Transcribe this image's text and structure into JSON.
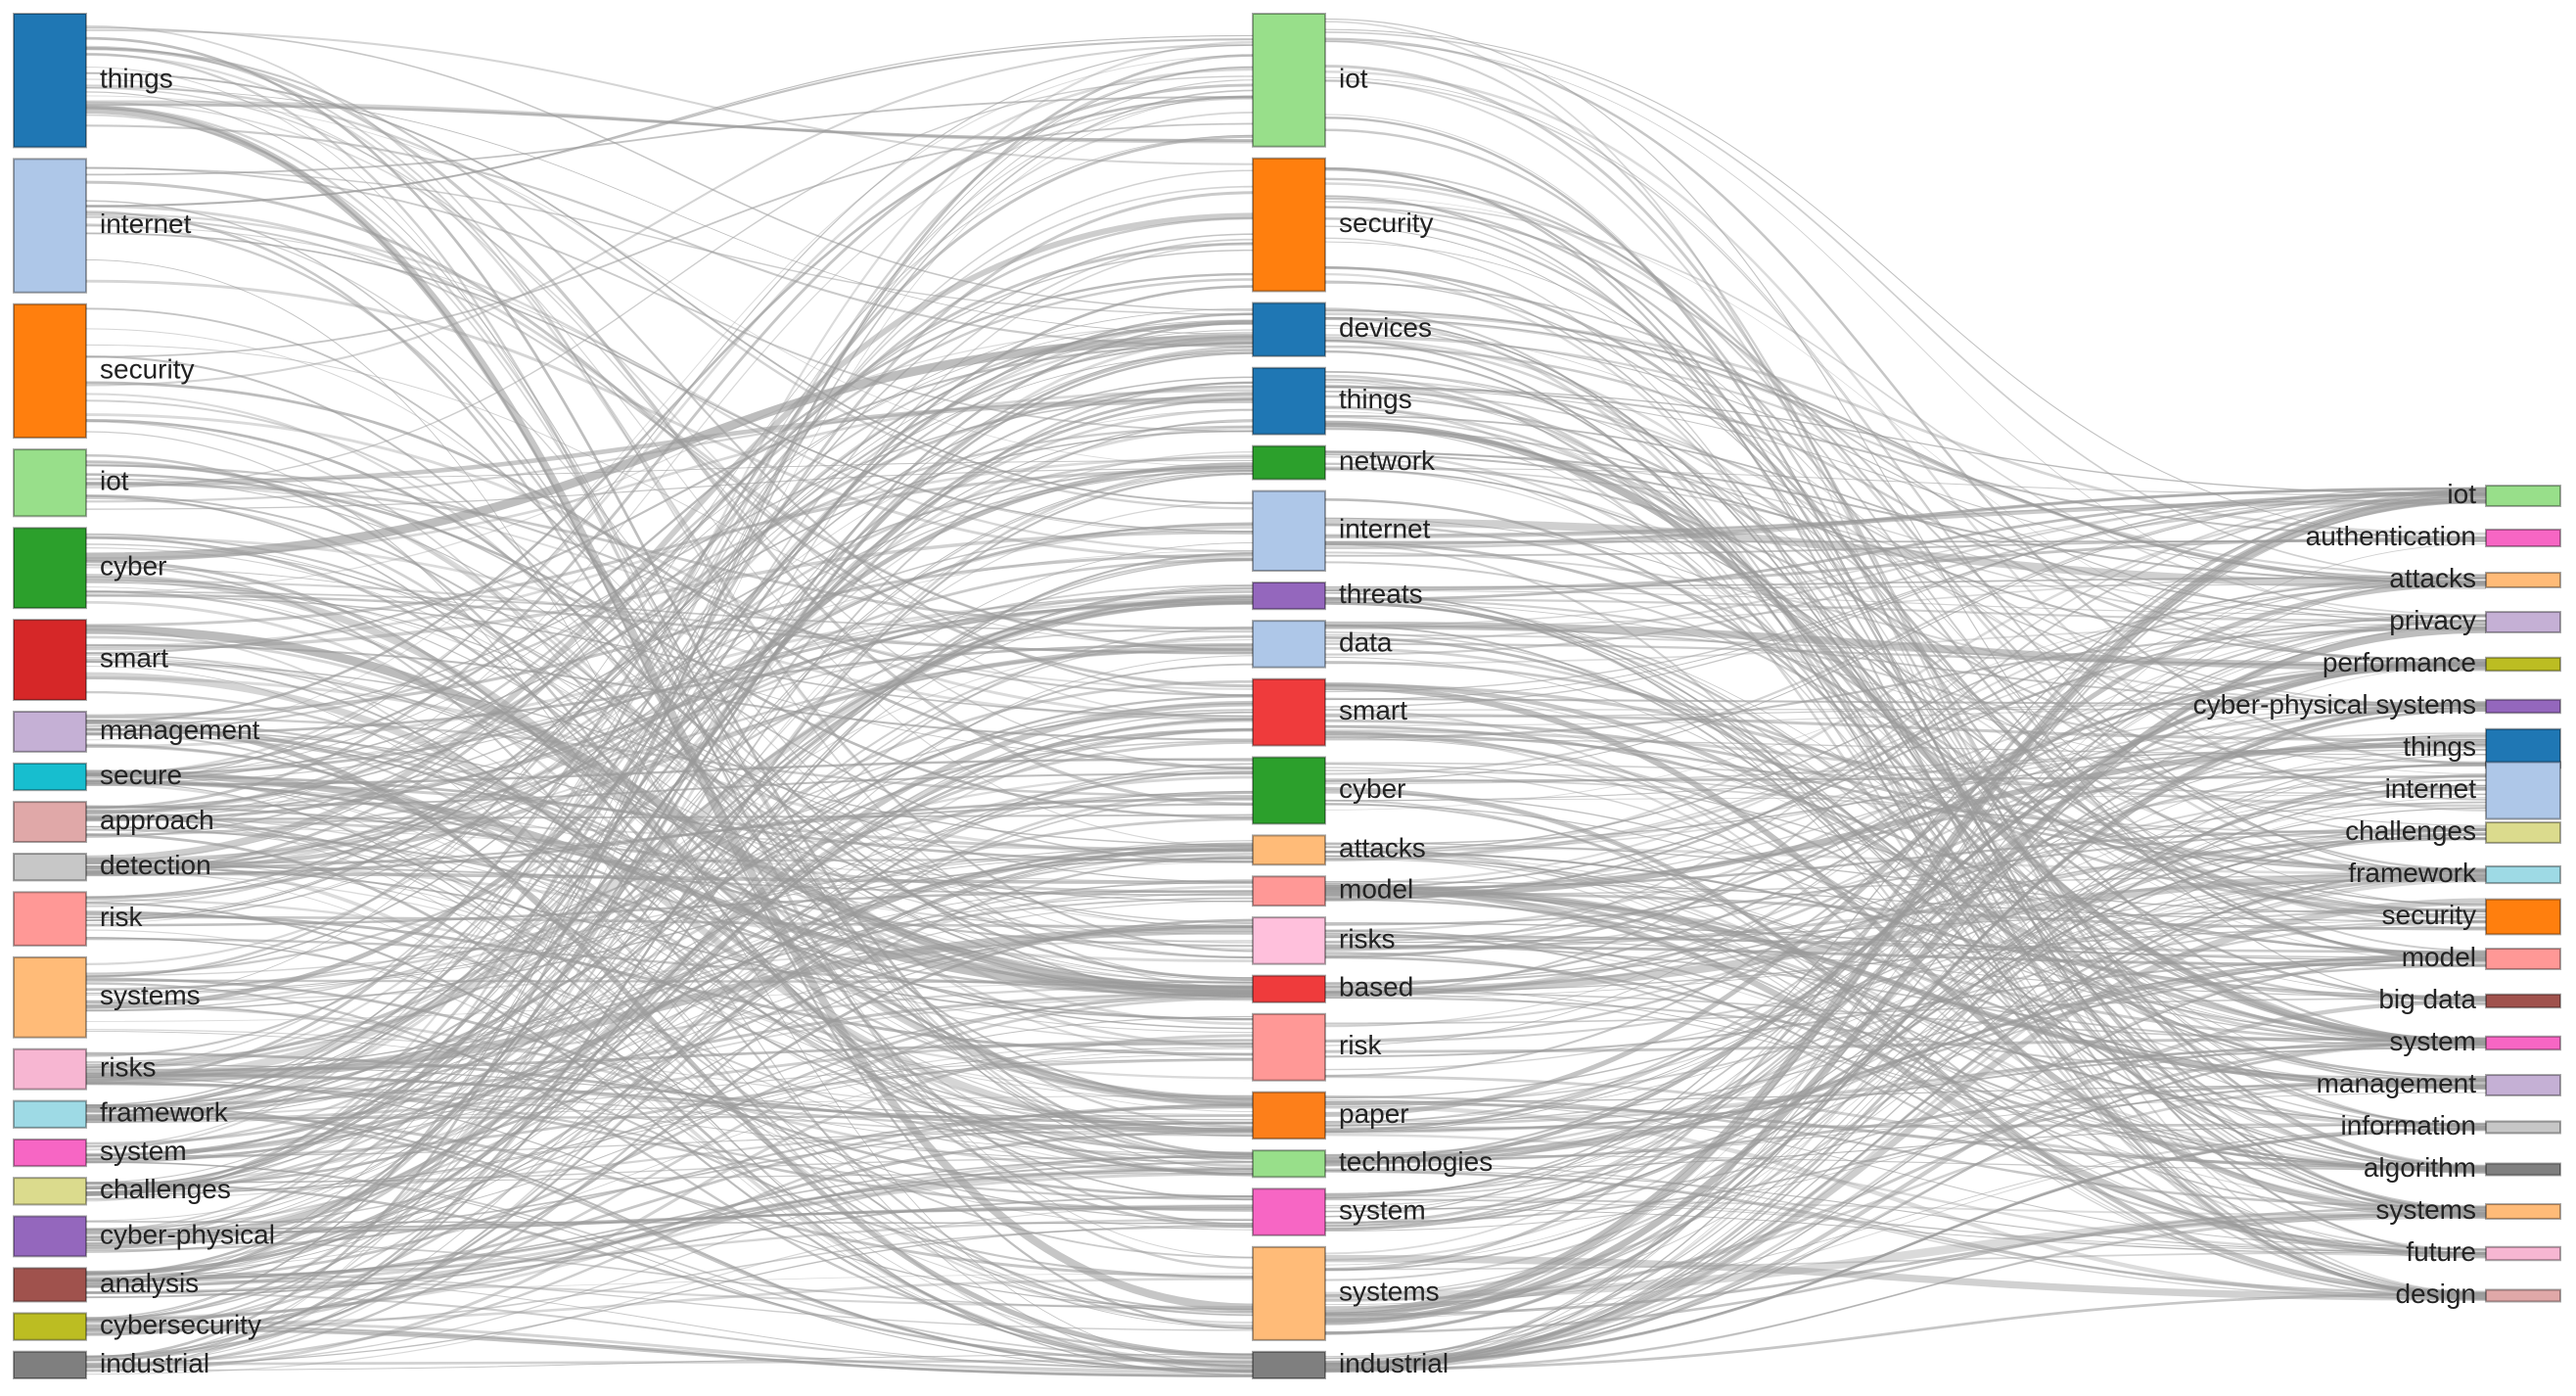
{
  "chart_data": {
    "type": "sankey",
    "columns": [
      {
        "nodes": [
          {
            "label": "things",
            "color": "#1f77b4",
            "weight": 10
          },
          {
            "label": "internet",
            "color": "#aec7e8",
            "weight": 10
          },
          {
            "label": "security",
            "color": "#ff7f0e",
            "weight": 10
          },
          {
            "label": "iot",
            "color": "#98df8a",
            "weight": 5
          },
          {
            "label": "cyber",
            "color": "#2ca02c",
            "weight": 6
          },
          {
            "label": "smart",
            "color": "#d62728",
            "weight": 6
          },
          {
            "label": "management",
            "color": "#c5b0d5",
            "weight": 3
          },
          {
            "label": "secure",
            "color": "#17becf",
            "weight": 2
          },
          {
            "label": "approach",
            "color": "#e0a8a8",
            "weight": 3
          },
          {
            "label": "detection",
            "color": "#c7c7c7",
            "weight": 2
          },
          {
            "label": "risk",
            "color": "#ff9896",
            "weight": 4
          },
          {
            "label": "systems",
            "color": "#ffbb78",
            "weight": 6
          },
          {
            "label": "risks",
            "color": "#f7b6d2",
            "weight": 3
          },
          {
            "label": "framework",
            "color": "#9edae5",
            "weight": 2
          },
          {
            "label": "system",
            "color": "#f766c4",
            "weight": 2
          },
          {
            "label": "challenges",
            "color": "#dbdb8d",
            "weight": 2
          },
          {
            "label": "cyber-physical",
            "color": "#9467bd",
            "weight": 3
          },
          {
            "label": "analysis",
            "color": "#a0524d",
            "weight": 2.5
          },
          {
            "label": "cybersecurity",
            "color": "#bcbd22",
            "weight": 2
          },
          {
            "label": "industrial",
            "color": "#7f7f7f",
            "weight": 2
          }
        ]
      },
      {
        "nodes": [
          {
            "label": "iot",
            "color": "#98df8a",
            "weight": 10
          },
          {
            "label": "security",
            "color": "#ff7f0e",
            "weight": 10
          },
          {
            "label": "devices",
            "color": "#1f77b4",
            "weight": 4
          },
          {
            "label": "things",
            "color": "#1f77b4",
            "weight": 5
          },
          {
            "label": "network",
            "color": "#2ca02c",
            "weight": 2.5
          },
          {
            "label": "internet",
            "color": "#aec7e8",
            "weight": 6
          },
          {
            "label": "threats",
            "color": "#9467bd",
            "weight": 2
          },
          {
            "label": "data",
            "color": "#aec7e8",
            "weight": 3.5
          },
          {
            "label": "smart",
            "color": "#ef3b3c",
            "weight": 5
          },
          {
            "label": "cyber",
            "color": "#2ca02c",
            "weight": 5
          },
          {
            "label": "attacks",
            "color": "#ffbb78",
            "weight": 2.2
          },
          {
            "label": "model",
            "color": "#ff9896",
            "weight": 2.2
          },
          {
            "label": "risks",
            "color": "#ffc0dc",
            "weight": 3.5
          },
          {
            "label": "based",
            "color": "#ef3b3c",
            "weight": 2
          },
          {
            "label": "risk",
            "color": "#ff9896",
            "weight": 5
          },
          {
            "label": "paper",
            "color": "#fd7f1a",
            "weight": 3.5
          },
          {
            "label": "technologies",
            "color": "#98df8a",
            "weight": 2
          },
          {
            "label": "system",
            "color": "#f766c4",
            "weight": 3.5
          },
          {
            "label": "systems",
            "color": "#ffbb78",
            "weight": 7
          },
          {
            "label": "industrial",
            "color": "#7f7f7f",
            "weight": 2
          }
        ]
      },
      {
        "nodes": [
          {
            "label": "iot",
            "color": "#98df8a",
            "weight": 2
          },
          {
            "label": "authentication",
            "color": "#f766c4",
            "weight": 1.5
          },
          {
            "label": "attacks",
            "color": "#ffbb78",
            "weight": 1.2
          },
          {
            "label": "privacy",
            "color": "#c5b0d5",
            "weight": 2
          },
          {
            "label": "performance",
            "color": "#bcbd22",
            "weight": 1
          },
          {
            "label": "cyber-physical systems",
            "color": "#9467bd",
            "weight": 1
          },
          {
            "label": "things",
            "color": "#1f77b4",
            "weight": 4.5
          },
          {
            "label": "internet",
            "color": "#aec7e8",
            "weight": 7
          },
          {
            "label": "challenges",
            "color": "#dbdb8d",
            "weight": 2
          },
          {
            "label": "framework",
            "color": "#9edae5",
            "weight": 1.5
          },
          {
            "label": "security",
            "color": "#ff7f0e",
            "weight": 4
          },
          {
            "label": "model",
            "color": "#ff9896",
            "weight": 2
          },
          {
            "label": "big data",
            "color": "#a0524d",
            "weight": 1
          },
          {
            "label": "system",
            "color": "#f766c4",
            "weight": 1
          },
          {
            "label": "management",
            "color": "#c5b0d5",
            "weight": 2
          },
          {
            "label": "information",
            "color": "#c7c7c7",
            "weight": 0.8
          },
          {
            "label": "algorithm",
            "color": "#7f7f7f",
            "weight": 0.8
          },
          {
            "label": "systems",
            "color": "#ffbb78",
            "weight": 1.2
          },
          {
            "label": "future",
            "color": "#f7b6d2",
            "weight": 1
          },
          {
            "label": "design",
            "color": "#e0a8a8",
            "weight": 0.8
          }
        ]
      }
    ],
    "link_color": "#9a9a9a"
  }
}
